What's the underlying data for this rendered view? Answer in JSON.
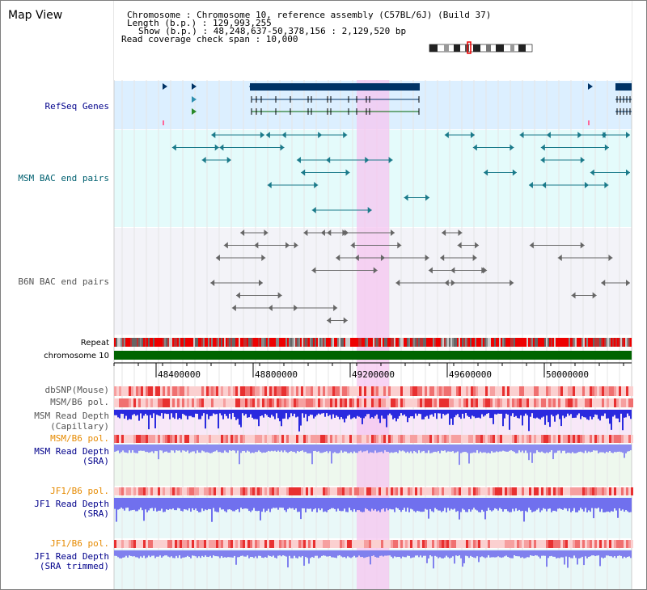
{
  "title": "Map View",
  "info": {
    "chromosome_line": "Chromosome   : Chromosome 10, reference assembly (C57BL/6J) (Build 37)",
    "length_line": "Length (b.p.) : 129,993,255",
    "show_line": "Show (b.p.) : 48,248,637-50,378,156 : 2,129,520 bp",
    "coverage_line": "Read coverage check span : 10,000"
  },
  "tracks": {
    "refseq": "RefSeq Genes",
    "msm_bac": "MSM BAC end pairs",
    "b6n_bac": "B6N BAC end pairs",
    "repeat": "Repeat",
    "chromosome": "chromosome 10",
    "dbsnp": "dbSNP(Mouse)",
    "msm_pol": "MSM/B6 pol.",
    "msm_depth_cap_1": "MSM Read Depth",
    "msm_depth_cap_2": "(Capillary)",
    "msm_pol_2": "MSM/B6 pol.",
    "msm_depth_sra_1": "MSM Read Depth",
    "msm_depth_sra_2": "(SRA)",
    "jf1_pol": "JF1/B6 pol.",
    "jf1_depth_sra_1": "JF1 Read Depth",
    "jf1_depth_sra_2": "(SRA)",
    "jf1_pol_2": "JF1/B6 pol.",
    "jf1_depth_trim_1": "JF1 Read Depth",
    "jf1_depth_trim_2": "(SRA trimmed)"
  },
  "axis": {
    "ticks": [
      "48400000",
      "48800000",
      "49200000",
      "49600000",
      "50000000"
    ]
  },
  "colors": {
    "refseq_label": "#00008b",
    "msm_bac_label": "#006070",
    "b6n_bac_label": "#555555",
    "orange_label": "#e68a00",
    "blue_label": "#00008b",
    "gene": "#003366",
    "chromosome_bar": "#006400",
    "highlight": "#f5c6f0"
  }
}
